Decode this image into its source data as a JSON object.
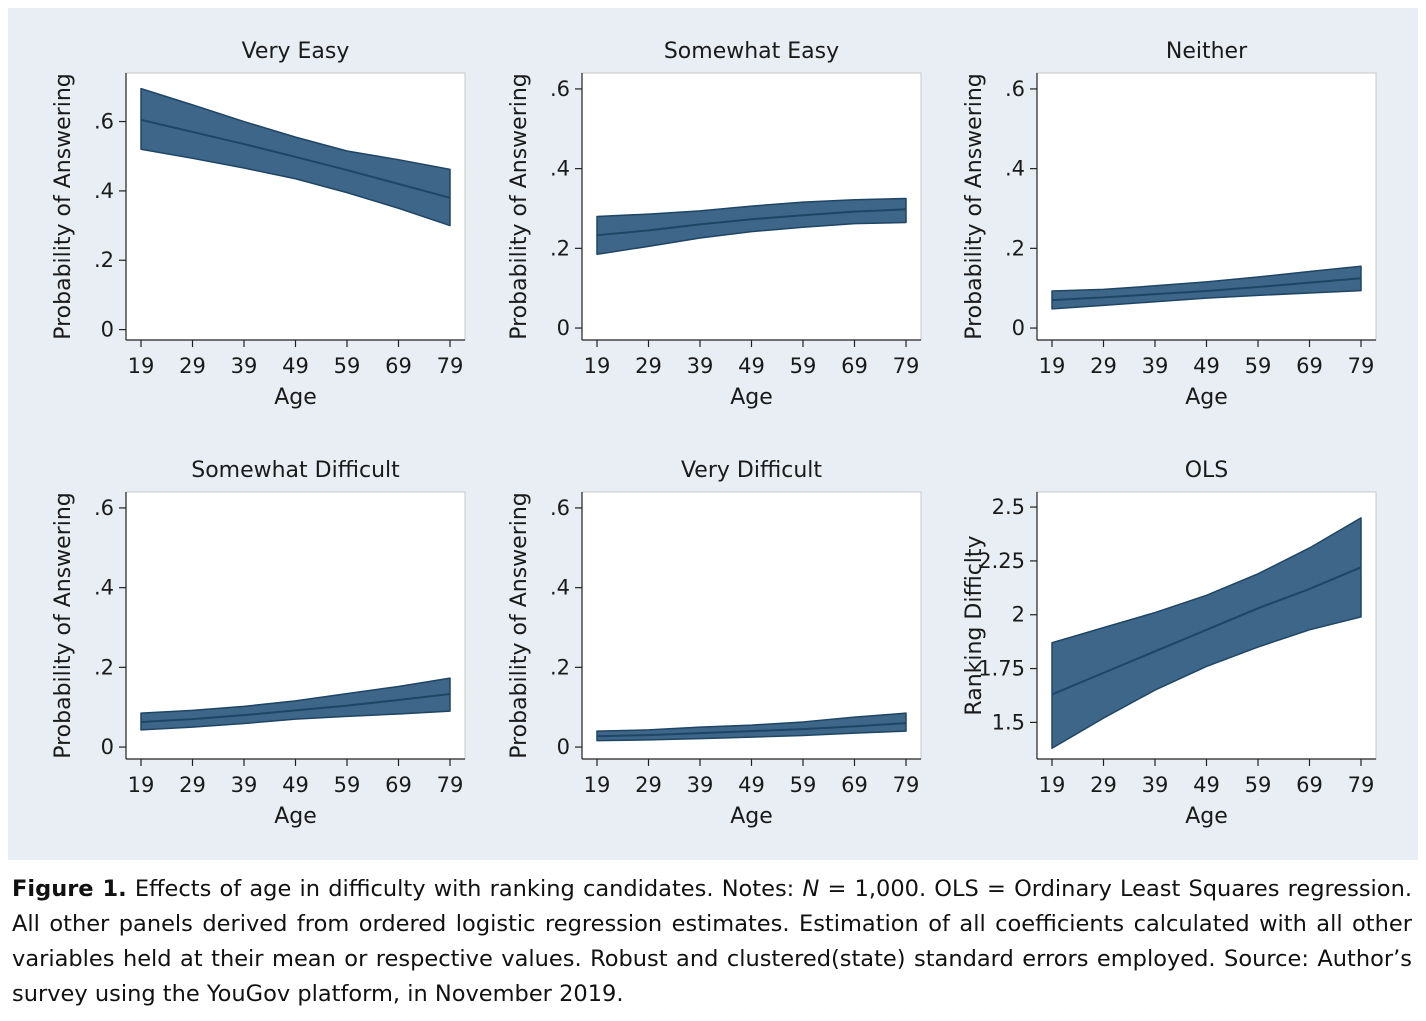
{
  "colors": {
    "band_fill": "#3d6688",
    "line": "#1f4565",
    "plot_bg": "#ffffff",
    "outer_bg": "#e8eef3"
  },
  "chart_data": [
    {
      "type": "area",
      "title": "Very Easy",
      "xlabel": "Age",
      "ylabel": "Probability of Answering",
      "x": [
        19,
        29,
        39,
        49,
        59,
        69,
        79
      ],
      "xticks": [
        "19",
        "29",
        "39",
        "49",
        "59",
        "69",
        "79"
      ],
      "yticks": [
        0,
        0.2,
        0.4,
        0.6
      ],
      "ytick_labels": [
        "0",
        ".2",
        ".4",
        ".6"
      ],
      "ylim": [
        -0.03,
        0.74
      ],
      "series": [
        {
          "role": "estimate",
          "values": [
            0.605,
            0.57,
            0.535,
            0.498,
            0.46,
            0.42,
            0.38
          ]
        },
        {
          "role": "upper",
          "values": [
            0.695,
            0.648,
            0.6,
            0.555,
            0.515,
            0.49,
            0.462
          ]
        },
        {
          "role": "lower",
          "values": [
            0.52,
            0.494,
            0.466,
            0.435,
            0.395,
            0.35,
            0.3
          ]
        }
      ]
    },
    {
      "type": "area",
      "title": "Somewhat Easy",
      "xlabel": "Age",
      "ylabel": "Probability of Answering",
      "x": [
        19,
        29,
        39,
        49,
        59,
        69,
        79
      ],
      "xticks": [
        "19",
        "29",
        "39",
        "49",
        "59",
        "69",
        "79"
      ],
      "yticks": [
        0,
        0.2,
        0.4,
        0.6
      ],
      "ytick_labels": [
        "0",
        ".2",
        ".4",
        ".6"
      ],
      "ylim": [
        -0.03,
        0.64
      ],
      "series": [
        {
          "role": "estimate",
          "values": [
            0.233,
            0.245,
            0.26,
            0.273,
            0.283,
            0.292,
            0.298
          ]
        },
        {
          "role": "upper",
          "values": [
            0.28,
            0.286,
            0.294,
            0.306,
            0.316,
            0.322,
            0.325
          ]
        },
        {
          "role": "lower",
          "values": [
            0.185,
            0.205,
            0.226,
            0.242,
            0.253,
            0.262,
            0.265
          ]
        }
      ]
    },
    {
      "type": "area",
      "title": "Neither",
      "xlabel": "Age",
      "ylabel": "Probability of Answering",
      "x": [
        19,
        29,
        39,
        49,
        59,
        69,
        79
      ],
      "xticks": [
        "19",
        "29",
        "39",
        "49",
        "59",
        "69",
        "79"
      ],
      "yticks": [
        0,
        0.2,
        0.4,
        0.6
      ],
      "ytick_labels": [
        "0",
        ".2",
        ".4",
        ".6"
      ],
      "ylim": [
        -0.03,
        0.64
      ],
      "series": [
        {
          "role": "estimate",
          "values": [
            0.07,
            0.077,
            0.085,
            0.093,
            0.103,
            0.114,
            0.125
          ]
        },
        {
          "role": "upper",
          "values": [
            0.093,
            0.097,
            0.106,
            0.116,
            0.128,
            0.142,
            0.155
          ]
        },
        {
          "role": "lower",
          "values": [
            0.048,
            0.057,
            0.066,
            0.075,
            0.082,
            0.088,
            0.094
          ]
        }
      ]
    },
    {
      "type": "area",
      "title": "Somewhat Difficult",
      "xlabel": "Age",
      "ylabel": "Probability of Answering",
      "x": [
        19,
        29,
        39,
        49,
        59,
        69,
        79
      ],
      "xticks": [
        "19",
        "29",
        "39",
        "49",
        "59",
        "69",
        "79"
      ],
      "yticks": [
        0,
        0.2,
        0.4,
        0.6
      ],
      "ytick_labels": [
        "0",
        ".2",
        ".4",
        ".6"
      ],
      "ylim": [
        -0.03,
        0.64
      ],
      "series": [
        {
          "role": "estimate",
          "values": [
            0.063,
            0.07,
            0.08,
            0.092,
            0.104,
            0.118,
            0.133
          ]
        },
        {
          "role": "upper",
          "values": [
            0.085,
            0.092,
            0.102,
            0.116,
            0.134,
            0.152,
            0.173
          ]
        },
        {
          "role": "lower",
          "values": [
            0.043,
            0.05,
            0.059,
            0.07,
            0.077,
            0.083,
            0.09
          ]
        }
      ]
    },
    {
      "type": "area",
      "title": "Very Difficult",
      "xlabel": "Age",
      "ylabel": "Probability of Answering",
      "x": [
        19,
        29,
        39,
        49,
        59,
        69,
        79
      ],
      "xticks": [
        "19",
        "29",
        "39",
        "49",
        "59",
        "69",
        "79"
      ],
      "yticks": [
        0,
        0.2,
        0.4,
        0.6
      ],
      "ytick_labels": [
        "0",
        ".2",
        ".4",
        ".6"
      ],
      "ylim": [
        -0.03,
        0.64
      ],
      "series": [
        {
          "role": "estimate",
          "values": [
            0.027,
            0.03,
            0.035,
            0.04,
            0.045,
            0.052,
            0.06
          ]
        },
        {
          "role": "upper",
          "values": [
            0.04,
            0.043,
            0.05,
            0.055,
            0.063,
            0.075,
            0.085
          ]
        },
        {
          "role": "lower",
          "values": [
            0.016,
            0.018,
            0.021,
            0.025,
            0.029,
            0.035,
            0.04
          ]
        }
      ]
    },
    {
      "type": "area",
      "title": "OLS",
      "xlabel": "Age",
      "ylabel": "Ranking Difficlty",
      "x": [
        19,
        29,
        39,
        49,
        59,
        69,
        79
      ],
      "xticks": [
        "19",
        "29",
        "39",
        "49",
        "59",
        "69",
        "79"
      ],
      "yticks": [
        1.5,
        1.75,
        2,
        2.25,
        2.5
      ],
      "ytick_labels": [
        "1.5",
        "1.75",
        "2",
        "2.25",
        "2.5"
      ],
      "ylim": [
        1.33,
        2.57
      ],
      "series": [
        {
          "role": "estimate",
          "values": [
            1.63,
            1.73,
            1.83,
            1.93,
            2.03,
            2.12,
            2.22
          ]
        },
        {
          "role": "upper",
          "values": [
            1.87,
            1.94,
            2.01,
            2.09,
            2.19,
            2.31,
            2.45
          ]
        },
        {
          "role": "lower",
          "values": [
            1.38,
            1.52,
            1.65,
            1.76,
            1.85,
            1.93,
            1.99
          ]
        }
      ]
    }
  ],
  "caption": {
    "label": "Figure 1.",
    "text_1": " Effects of age in difficulty with ranking candidates. Notes: ",
    "n_symbol": "N",
    "text_2": " = 1,000. OLS = Ordinary Least Squares regression. All other panels derived from ordered logistic regression estimates. Estimation of all coefficients calculated with all other variables held at their mean or respective values. Robust and clustered(state) standard errors employed. Source: Author’s survey using the YouGov platform, in November 2019."
  }
}
